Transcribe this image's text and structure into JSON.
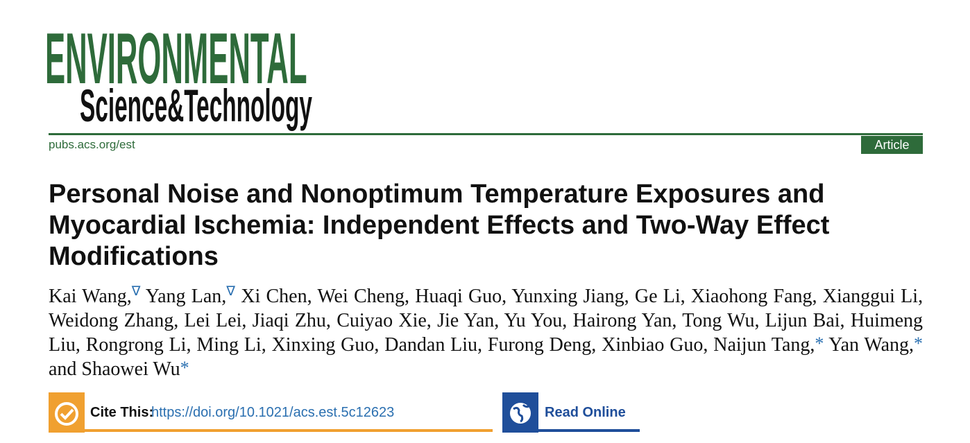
{
  "header": {
    "logo": {
      "line1": "ENVIRONMENTAL",
      "line2": "Science&Technology"
    },
    "url": "pubs.acs.org/est",
    "label": "Article"
  },
  "title": "Personal Noise and Nonoptimum Temperature Exposures and Myocardial Ischemia: Independent Effects and Two-Way Effect Modifications",
  "authors": [
    {
      "name": "Kai Wang,",
      "mark": "∇"
    },
    {
      "name": "Yang Lan,",
      "mark": "∇"
    },
    {
      "name": "Xi Chen,"
    },
    {
      "name": "Wei Cheng,"
    },
    {
      "name": "Huaqi Guo,"
    },
    {
      "name": "Yunxing Jiang,"
    },
    {
      "name": "Ge Li,"
    },
    {
      "name": "Xiaohong Fang,"
    },
    {
      "name": "Xianggui Li,"
    },
    {
      "name": "Weidong Zhang,"
    },
    {
      "name": "Lei Lei,"
    },
    {
      "name": "Jiaqi Zhu,"
    },
    {
      "name": "Cuiyao Xie,"
    },
    {
      "name": "Jie Yan,"
    },
    {
      "name": "Yu You,"
    },
    {
      "name": "Hairong Yan,"
    },
    {
      "name": "Tong Wu,"
    },
    {
      "name": "Lijun Bai,"
    },
    {
      "name": "Huimeng Liu,"
    },
    {
      "name": "Rongrong Li,"
    },
    {
      "name": "Ming Li,"
    },
    {
      "name": "Xinxing Guo,"
    },
    {
      "name": "Dandan Liu,"
    },
    {
      "name": "Furong Deng,"
    },
    {
      "name": "Xinbiao Guo,"
    },
    {
      "name": "Naijun Tang,",
      "mark": "*"
    },
    {
      "name": "Yan Wang,",
      "mark": "*"
    },
    {
      "name": "and Shaowei Wu",
      "mark": "*"
    }
  ],
  "cite": {
    "label": "Cite This:",
    "doi": "https://doi.org/10.1021/acs.est.5c12623"
  },
  "read_online": "Read Online"
}
